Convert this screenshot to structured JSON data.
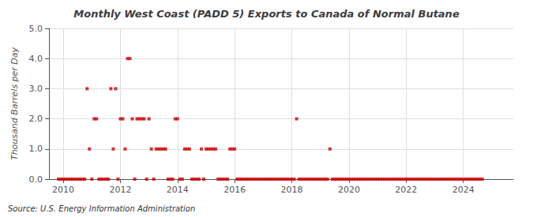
{
  "chart_data": {
    "type": "scatter",
    "title": "Monthly West Coast (PADD 5) Exports to Canada of Normal Butane",
    "ylabel": "Thousand Barrels per Day",
    "annotation": "Source: U.S. Energy Information Administration",
    "color": "#cc0000",
    "marker": "square",
    "grid": true,
    "xlim": [
      2009.5,
      2025.75
    ],
    "xticks": [
      2010,
      2012,
      2014,
      2016,
      2018,
      2020,
      2022,
      2024
    ],
    "ylim": [
      0.0,
      5.0
    ],
    "yticks": [
      {
        "value": 0,
        "label": "0.0"
      },
      {
        "value": 1,
        "label": "1.0"
      },
      {
        "value": 2,
        "label": "2.0"
      },
      {
        "value": 3,
        "label": "3.0"
      },
      {
        "value": 4,
        "label": "4.0"
      },
      {
        "value": 5,
        "label": "5.0"
      }
    ],
    "x": [
      2009.8333333333333,
      2009.9166666666667,
      2010,
      2010.0833333333333,
      2010.1666666666667,
      2010.25,
      2010.3333333333333,
      2010.4166666666667,
      2010.5,
      2010.5833333333333,
      2010.6666666666667,
      2010.75,
      2010.8333333333333,
      2010.9166666666667,
      2011,
      2011.0833333333333,
      2011.1666666666667,
      2011.25,
      2011.3333333333333,
      2011.4166666666667,
      2011.5,
      2011.5833333333333,
      2011.6666666666667,
      2011.75,
      2011.8333333333333,
      2011.9166666666667,
      2012,
      2012.0833333333333,
      2012.1666666666667,
      2012.25,
      2012.3333333333333,
      2012.4166666666667,
      2012.5,
      2012.5833333333333,
      2012.6666666666667,
      2012.75,
      2012.8333333333333,
      2012.9166666666667,
      2013,
      2013.0833333333333,
      2013.1666666666667,
      2013.25,
      2013.3333333333333,
      2013.4166666666667,
      2013.5,
      2013.5833333333333,
      2013.6666666666667,
      2013.75,
      2013.8333333333333,
      2013.9166666666667,
      2014,
      2014.0833333333333,
      2014.1666666666667,
      2014.25,
      2014.3333333333333,
      2014.4166666666667,
      2014.5,
      2014.5833333333333,
      2014.6666666666667,
      2014.75,
      2014.8333333333333,
      2014.9166666666667,
      2015,
      2015.0833333333333,
      2015.1666666666667,
      2015.25,
      2015.3333333333333,
      2015.4166666666667,
      2015.5,
      2015.5833333333333,
      2015.6666666666667,
      2015.75,
      2015.8333333333333,
      2015.9166666666667,
      2016,
      2016.0833333333333,
      2016.1666666666667,
      2016.25,
      2016.3333333333333,
      2016.4166666666667,
      2016.5,
      2016.5833333333333,
      2016.6666666666667,
      2016.75,
      2016.8333333333333,
      2016.9166666666667,
      2017,
      2017.0833333333333,
      2017.1666666666667,
      2017.25,
      2017.3333333333333,
      2017.4166666666667,
      2017.5,
      2017.5833333333333,
      2017.6666666666667,
      2017.75,
      2017.8333333333333,
      2017.9166666666667,
      2018,
      2018.0833333333333,
      2018.1666666666667,
      2018.25,
      2018.3333333333333,
      2018.4166666666667,
      2018.5,
      2018.5833333333333,
      2018.6666666666667,
      2018.75,
      2018.8333333333333,
      2018.9166666666667,
      2019,
      2019.0833333333333,
      2019.1666666666667,
      2019.25,
      2019.3333333333333,
      2019.4166666666667,
      2019.5,
      2019.5833333333333,
      2019.6666666666667,
      2019.75,
      2019.8333333333333,
      2019.9166666666667,
      2020,
      2020.0833333333333,
      2020.1666666666667,
      2020.25,
      2020.3333333333333,
      2020.4166666666667,
      2020.5,
      2020.5833333333333,
      2020.6666666666667,
      2020.75,
      2020.8333333333333,
      2020.9166666666667,
      2021,
      2021.0833333333333,
      2021.1666666666667,
      2021.25,
      2021.3333333333333,
      2021.4166666666667,
      2021.5,
      2021.5833333333333,
      2021.6666666666667,
      2021.75,
      2021.8333333333333,
      2021.9166666666667,
      2022,
      2022.0833333333333,
      2022.1666666666667,
      2022.25,
      2022.3333333333333,
      2022.4166666666667,
      2022.5,
      2022.5833333333333,
      2022.6666666666667,
      2022.75,
      2022.8333333333333,
      2022.9166666666667,
      2023,
      2023.0833333333333,
      2023.1666666666667,
      2023.25,
      2023.3333333333333,
      2023.4166666666667,
      2023.5,
      2023.5833333333333,
      2023.6666666666667,
      2023.75,
      2023.8333333333333,
      2023.9166666666667,
      2024,
      2024.0833333333333,
      2024.1666666666667,
      2024.25,
      2024.3333333333333,
      2024.4166666666667,
      2024.5,
      2024.5833333333333,
      2024.6666666666667
    ],
    "values": [
      0,
      0,
      0,
      0,
      0,
      0,
      0,
      0,
      0,
      0,
      0,
      0,
      3,
      1,
      0,
      2,
      2,
      0,
      0,
      0,
      0,
      0,
      3,
      1,
      3,
      0,
      2,
      2,
      1,
      4,
      4,
      2,
      0,
      2,
      2,
      2,
      2,
      0,
      2,
      1,
      0,
      1,
      1,
      1,
      1,
      1,
      0,
      0,
      0,
      2,
      2,
      0,
      0,
      1,
      1,
      1,
      0,
      0,
      0,
      0,
      1,
      0,
      1,
      1,
      1,
      1,
      1,
      0,
      0,
      0,
      0,
      0,
      1,
      1,
      1,
      0,
      0,
      0,
      0,
      0,
      0,
      0,
      0,
      0,
      0,
      0,
      0,
      0,
      0,
      0,
      0,
      0,
      0,
      0,
      0,
      0,
      0,
      0,
      0,
      0,
      2,
      0,
      0,
      0,
      0,
      0,
      0,
      0,
      0,
      0,
      0,
      0,
      0,
      0,
      1,
      0,
      0,
      0,
      0,
      0,
      0,
      0,
      0,
      0,
      0,
      0,
      0,
      0,
      0,
      0,
      0,
      0,
      0,
      0,
      0,
      0,
      0,
      0,
      0,
      0,
      0,
      0,
      0,
      0,
      0,
      0,
      0,
      0,
      0,
      0,
      0,
      0,
      0,
      0,
      0,
      0,
      0,
      0,
      0,
      0,
      0,
      0,
      0,
      0,
      0,
      0,
      0,
      0,
      0,
      0,
      0,
      0,
      0,
      0,
      0,
      0,
      0,
      0,
      0
    ]
  }
}
